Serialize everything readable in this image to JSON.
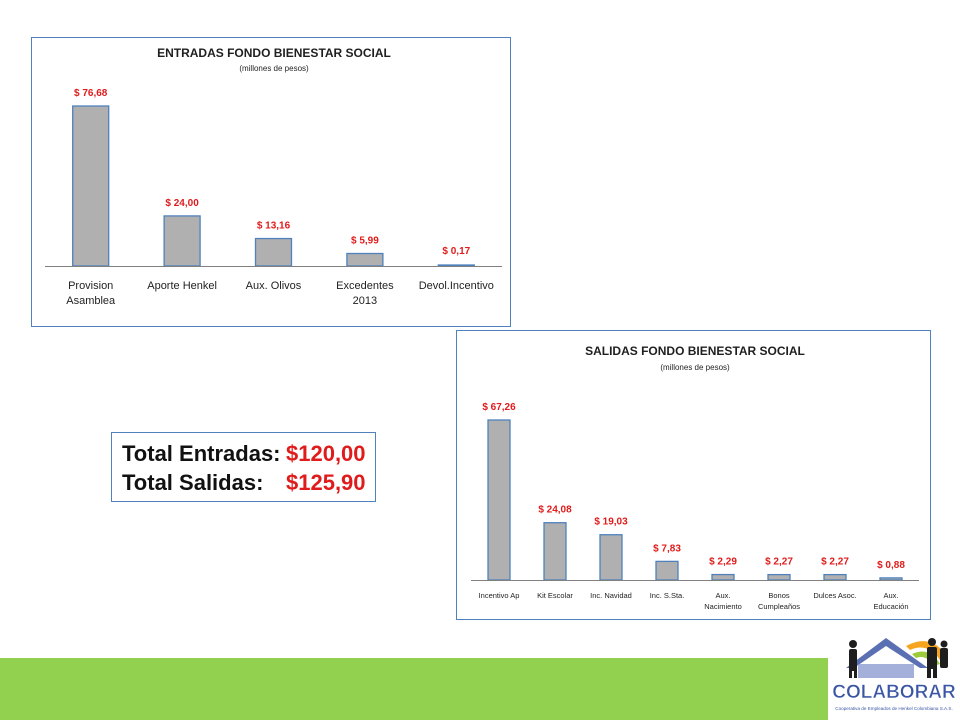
{
  "chart_data": [
    {
      "type": "bar",
      "title": "ENTRADAS FONDO BIENESTAR SOCIAL",
      "subtitle": "(millones de pesos)",
      "categories": [
        [
          "Provision",
          "Asamblea"
        ],
        [
          "Aporte Henkel"
        ],
        [
          "Aux. Olivos"
        ],
        [
          "Excedentes",
          "2013"
        ],
        [
          "Devol.Incentivo"
        ]
      ],
      "values": [
        76.68,
        24.0,
        13.16,
        5.99,
        0.17
      ],
      "data_labels": [
        "$ 76,68",
        "$ 24,00",
        "$ 13,16",
        "$ 5,99",
        "$ 0,17"
      ],
      "bar_color": "#b0b0b0",
      "bar_border": "#4f81bd",
      "label_color": "#e01b1b",
      "grid": false,
      "legend": "none"
    },
    {
      "type": "bar",
      "title": "SALIDAS FONDO BIENESTAR SOCIAL",
      "subtitle": "(millones de pesos)",
      "categories": [
        [
          "Incentivo Ap"
        ],
        [
          "Kit Escolar"
        ],
        [
          "Inc. Navidad"
        ],
        [
          "Inc. S.Sta."
        ],
        [
          "Aux.",
          "Nacimiento"
        ],
        [
          "Bonos",
          "Cumpleaños"
        ],
        [
          "Dulces Asoc."
        ],
        [
          "Aux.",
          "Educación"
        ]
      ],
      "values": [
        67.26,
        24.08,
        19.03,
        7.83,
        2.29,
        2.27,
        2.27,
        0.88
      ],
      "data_labels": [
        "$ 67,26",
        "$ 24,08",
        "$ 19,03",
        "$ 7,83",
        "$ 2,29",
        "$ 2,27",
        "$ 2,27",
        "$ 0,88"
      ],
      "bar_color": "#b0b0b0",
      "bar_border": "#4f81bd",
      "label_color": "#e01b1b",
      "grid": false,
      "legend": "none"
    }
  ],
  "totals": {
    "entradas_label": "Total Entradas:",
    "entradas_value": "$120,00",
    "salidas_label": "Total Salidas:",
    "salidas_value": "$125,90"
  },
  "logo": {
    "name": "COLABORAR",
    "tagline": "Cooperativa de Empleados de Henkel Colombiana S.A.S."
  },
  "colors": {
    "footer_bar": "#92d050",
    "accent_red": "#e01b1b",
    "border_blue": "#4f81bd"
  }
}
